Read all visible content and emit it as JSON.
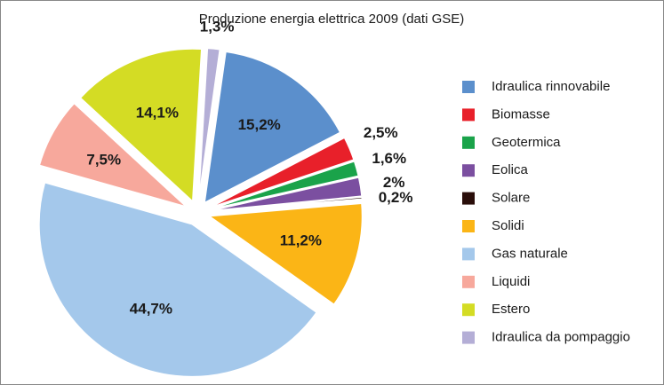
{
  "chart_data": {
    "type": "pie",
    "title": "Produzione energia elettrica 2009 (dati GSE)",
    "categories": [
      "Idraulica rinnovabile",
      "Biomasse",
      "Geotermica",
      "Eolica",
      "Solare",
      "Solidi",
      "Gas naturale",
      "Liquidi",
      "Estero",
      "Idraulica da pompaggio"
    ],
    "values": [
      15.2,
      2.5,
      1.6,
      2,
      0.2,
      11.2,
      44.7,
      7.5,
      14.1,
      1.3
    ],
    "value_labels": [
      "15,2%",
      "2,5%",
      "1,6%",
      "2%",
      "0,2%",
      "11,2%",
      "44,7%",
      "7,5%",
      "14,1%",
      "1,3%"
    ],
    "colors": [
      "#5b8fcc",
      "#e8202a",
      "#1aa34a",
      "#7b4fa0",
      "#2a0e0a",
      "#fbb516",
      "#a4c8eb",
      "#f7a89c",
      "#d4dc24",
      "#b4aed6"
    ],
    "legend": "right"
  }
}
